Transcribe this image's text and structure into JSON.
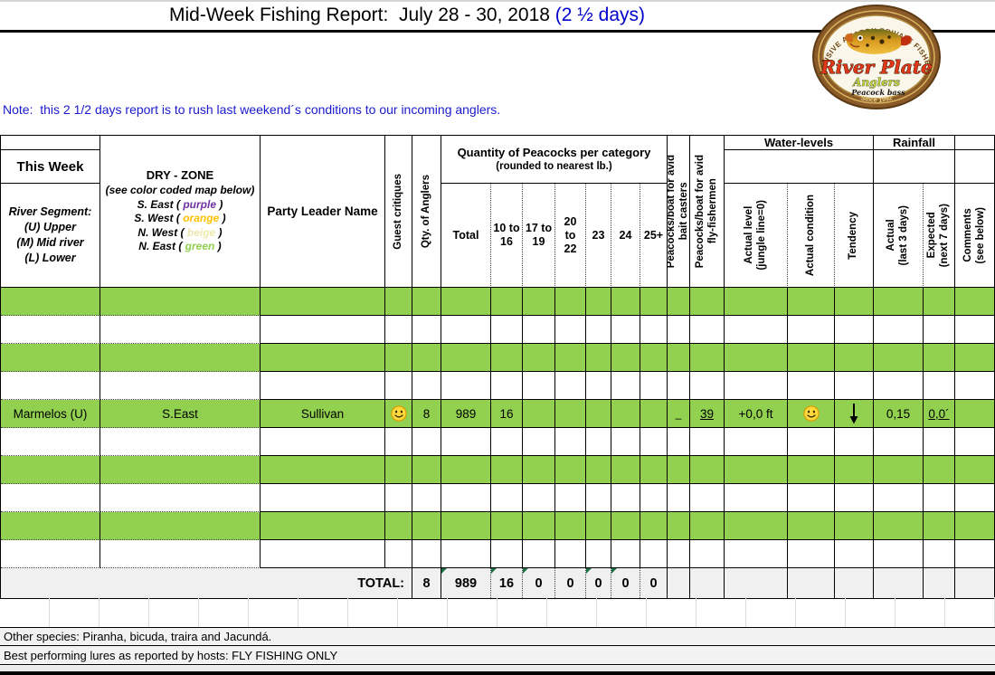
{
  "title": {
    "text": "Mid-Week Fishing Report:  July 28 - 30, 2018 ",
    "highlight": "(2 ½ days)"
  },
  "note": "Note:  this 2 1/2 days report is to rush last weekend´s conditions to our incoming anglers.",
  "logo": {
    "arc_text": "EXCLUSIVE AMAZON PRIVATE FISHERIES",
    "brand_line1": "River Plate",
    "brand_line2": "Anglers",
    "tagline": "Peacock bass",
    "since": "Since 1992"
  },
  "header": {
    "this_week": "This Week",
    "river_segment": "River Segment:\n(U) Upper\n(M) Mid river\n(L) Lower",
    "dry_zone_title": "DRY - ZONE",
    "dry_zone_subtitle": "(see color coded map below)",
    "zones": [
      {
        "prefix": "S. East ( ",
        "word": "purple",
        "suffix": " )"
      },
      {
        "prefix": "S. West ( ",
        "word": "orange",
        "suffix": " )"
      },
      {
        "prefix": "N. West ( ",
        "word": "beige",
        "suffix": " )"
      },
      {
        "prefix": "N. East ( ",
        "word": "green",
        "suffix": " )"
      }
    ],
    "party_leader": "Party Leader Name",
    "guest_critiques": "Guest critiques",
    "qty_anglers": "Qty. of Anglers",
    "peacock_group_line1": "Quantity of Peacocks per category",
    "peacock_group_line2": "(rounded to nearest lb.)",
    "cat_total": "Total",
    "cat_10_16": "10 to\n16",
    "cat_17_19": "17 to\n19",
    "cat_20_22": "20\nto\n22",
    "cat_23": "23",
    "cat_24": "24",
    "cat_25p": "25+",
    "bait_casters": "Peacocks/boat for avid\nbait casters",
    "fly_fishermen": "Peacocks/boat for avid\nfly-fishermen",
    "water_levels": "Water-levels",
    "rainfall": "Rainfall",
    "actual_level": "Actual level\n(jungle line=0)",
    "actual_condition": "Actual condition",
    "tendency": "Tendency",
    "rain_actual": "Actual\n(last 3 days)",
    "rain_expected": "Expected\n(next 7 days)",
    "comments": "Comments\n(see below)"
  },
  "report_row": {
    "river_segment": "Marmelos (U)",
    "zone": "S.East",
    "party_leader": "Sullivan",
    "guest_critique_icon": "smiley-face",
    "qty_anglers": "8",
    "total": "989",
    "cat_10_16": "16",
    "cat_17_19": "",
    "cat_20_22": "",
    "cat_23": "",
    "cat_24": "",
    "cat_25p": "",
    "bait_casters": "_",
    "fly_fishermen": "39",
    "actual_level": "+0,0 ft",
    "condition_icon": "smiley-face",
    "tendency_icon": "down-arrow",
    "rain_actual": "0,15",
    "rain_expected": "0,0´",
    "comments": ""
  },
  "total_row": {
    "label": "TOTAL:",
    "qty_anglers": "8",
    "total": "989",
    "cat_10_16": "16",
    "cat_17_19": "0",
    "cat_20_22": "0",
    "cat_23": "0",
    "cat_24": "0",
    "cat_25p": "0"
  },
  "footer": {
    "other_species": "Other species: Piranha, bicuda, traira and Jacundá.",
    "best_lures": "Best performing lures as reported by hosts: FLY FISHING ONLY"
  },
  "colors": {
    "row_green": "#92D050",
    "accent_blue": "#0000CC",
    "zone_purple": "#7030A0",
    "zone_orange": "#FFC000",
    "zone_beige": "#EDE9B0",
    "zone_green": "#92D050",
    "total_row_gray": "#F0F0F0"
  }
}
